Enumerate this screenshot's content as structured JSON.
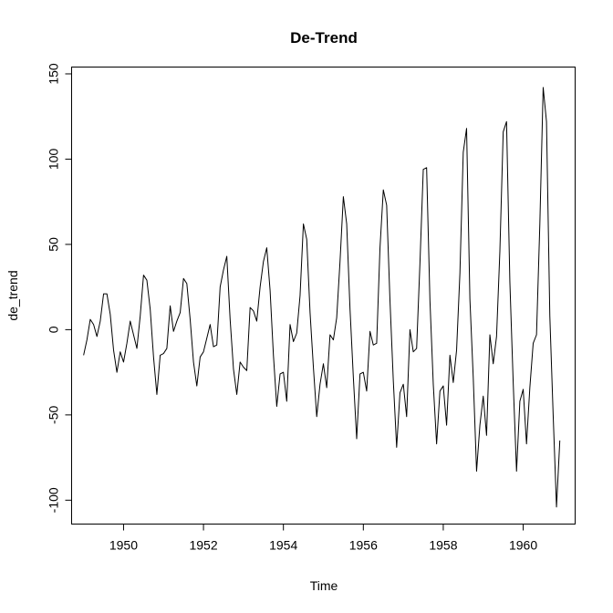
{
  "chart_data": {
    "type": "line",
    "title": "De-Trend",
    "xlabel": "Time",
    "ylabel": "de_trend",
    "xlim": [
      1948.7,
      1961.3
    ],
    "ylim": [
      -114,
      154
    ],
    "x_ticks": [
      1950,
      1952,
      1954,
      1956,
      1958,
      1960
    ],
    "x_tick_labels": [
      "1950",
      "1952",
      "1954",
      "1956",
      "1958",
      "1960"
    ],
    "y_ticks": [
      -100,
      -50,
      0,
      50,
      100,
      150
    ],
    "y_tick_labels": [
      "-100",
      "-50",
      "0",
      "50",
      "100",
      "150"
    ],
    "grid": false,
    "legend": "none",
    "line_color": "#000000",
    "x_start": 1949.0,
    "x_step": 0.0833333333,
    "values": [
      -15,
      -6,
      6,
      3,
      -4,
      5,
      21,
      21,
      9,
      -12,
      -25,
      -13,
      -19,
      -8,
      5,
      -3,
      -11,
      8,
      32,
      29,
      12,
      -16,
      -38,
      -15,
      -14,
      -11,
      14,
      -1,
      5,
      10,
      30,
      27,
      6,
      -19,
      -33,
      -16,
      -13,
      -5,
      3,
      -10,
      -9,
      25,
      35,
      43,
      6,
      -23,
      -38,
      -19,
      -22,
      -24,
      13,
      11,
      5,
      25,
      40,
      48,
      23,
      -15,
      -45,
      -26,
      -25,
      -42,
      3,
      -7,
      -2,
      20,
      62,
      53,
      10,
      -22,
      -51,
      -32,
      -20,
      -34,
      -3,
      -6,
      7,
      40,
      78,
      62,
      12,
      -28,
      -64,
      -26,
      -25,
      -36,
      -1,
      -9,
      -8,
      48,
      82,
      73,
      17,
      -30,
      -69,
      -37,
      -32,
      -51,
      0,
      -13,
      -11,
      39,
      94,
      95,
      17,
      -32,
      -67,
      -36,
      -33,
      -56,
      -15,
      -31,
      -12,
      33,
      104,
      118,
      18,
      -28,
      -83,
      -56,
      -39,
      -62,
      -3,
      -20,
      -4,
      46,
      116,
      122,
      28,
      -31,
      -83,
      -42,
      -35,
      -67,
      -34,
      -8,
      -3,
      62,
      142,
      122,
      8,
      -50,
      -104,
      -65
    ]
  }
}
